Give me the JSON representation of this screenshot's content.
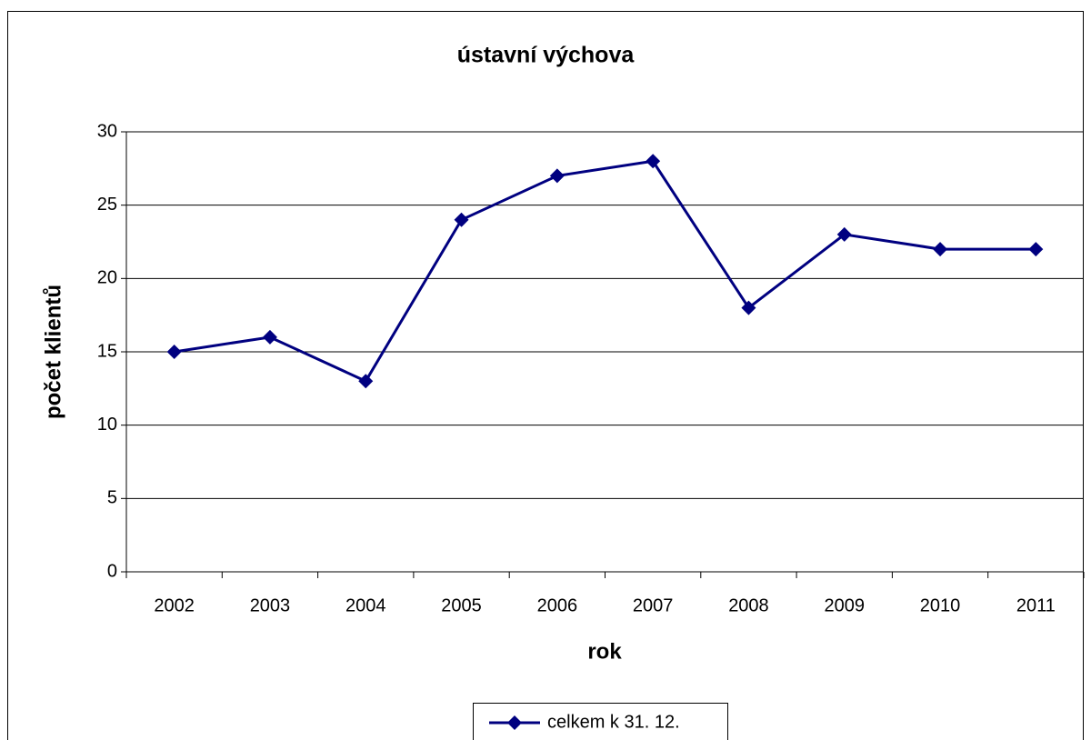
{
  "chart_data": {
    "type": "line",
    "title": "ústavní výchova",
    "x_label": "rok",
    "y_label": "počet klientů",
    "categories": [
      "2002",
      "2003",
      "2004",
      "2005",
      "2006",
      "2007",
      "2008",
      "2009",
      "2010",
      "2011"
    ],
    "series": [
      {
        "name": "celkem k 31. 12.",
        "color": "#000080",
        "values": [
          15,
          16,
          13,
          24,
          27,
          28,
          18,
          23,
          22,
          22
        ]
      }
    ],
    "ylim": [
      0,
      30
    ],
    "yticks": [
      0,
      5,
      10,
      15,
      20,
      25,
      30
    ],
    "grid": true,
    "legend": "bottom"
  }
}
